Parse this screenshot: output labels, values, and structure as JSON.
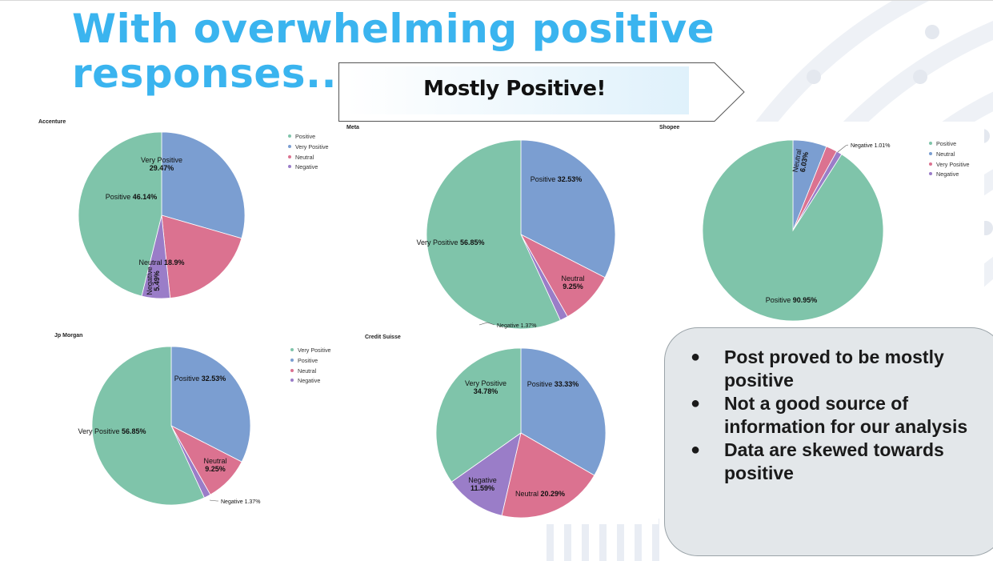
{
  "slide": {
    "title_line1": "With overwhelming positive",
    "title_line2": "responses..",
    "banner": "Mostly Positive!"
  },
  "colors": {
    "title": "#3ab4ef",
    "Positive": "#7fc4aa",
    "Very Positive": "#7b9ed1",
    "Neutral": "#db7290",
    "Negative": "#9a7dc8",
    "Very Positive (Meta/JP)": "#7fc4aa",
    "Positive (Meta/JP)": "#7b9ed1"
  },
  "notes": [
    "Post proved to be mostly positive",
    "Not a good source of information for our analysis",
    "Data are skewed towards positive"
  ],
  "chart_data": [
    {
      "type": "pie",
      "title": "Accenture",
      "legend": [
        "Positive",
        "Very Positive",
        "Neutral",
        "Negative"
      ],
      "legend_colors": [
        "#7fc4aa",
        "#7b9ed1",
        "#db7290",
        "#9a7dc8"
      ],
      "slices": [
        {
          "name": "Very Positive",
          "value": 29.47,
          "pct": "29.47%",
          "color": "#7b9ed1"
        },
        {
          "name": "Neutral",
          "value": 18.9,
          "pct": "18.9%",
          "color": "#db7290"
        },
        {
          "name": "Negative",
          "value": 5.49,
          "pct": "5.49%",
          "color": "#9a7dc8"
        },
        {
          "name": "Positive",
          "value": 46.14,
          "pct": "46.14%",
          "color": "#7fc4aa"
        }
      ]
    },
    {
      "type": "pie",
      "title": "Meta",
      "legend": [],
      "legend_colors": [],
      "slices": [
        {
          "name": "Positive",
          "value": 32.53,
          "pct": "32.53%",
          "color": "#7b9ed1"
        },
        {
          "name": "Neutral",
          "value": 9.25,
          "pct": "9.25%",
          "color": "#db7290"
        },
        {
          "name": "Negative",
          "value": 1.37,
          "pct": "1.37%",
          "color": "#9a7dc8"
        },
        {
          "name": "Very Positive",
          "value": 56.85,
          "pct": "56.85%",
          "color": "#7fc4aa"
        }
      ]
    },
    {
      "type": "pie",
      "title": "Shopee",
      "legend": [
        "Positive",
        "Neutral",
        "Very Positive",
        "Negative"
      ],
      "legend_colors": [
        "#7fc4aa",
        "#7b9ed1",
        "#db7290",
        "#9a7dc8"
      ],
      "slices": [
        {
          "name": "Neutral",
          "value": 6.03,
          "pct": "6.03%",
          "color": "#7b9ed1"
        },
        {
          "name": "Very Positive",
          "value": 2.01,
          "pct": "",
          "color": "#db7290"
        },
        {
          "name": "Negative",
          "value": 1.01,
          "pct": "1.01%",
          "color": "#9a7dc8"
        },
        {
          "name": "Positive",
          "value": 90.95,
          "pct": "90.95%",
          "color": "#7fc4aa"
        }
      ]
    },
    {
      "type": "pie",
      "title": "Jp Morgan",
      "legend": [
        "Very Positive",
        "Positive",
        "Neutral",
        "Negative"
      ],
      "legend_colors": [
        "#7fc4aa",
        "#7b9ed1",
        "#db7290",
        "#9a7dc8"
      ],
      "slices": [
        {
          "name": "Positive",
          "value": 32.53,
          "pct": "32.53%",
          "color": "#7b9ed1"
        },
        {
          "name": "Neutral",
          "value": 9.25,
          "pct": "9.25%",
          "color": "#db7290"
        },
        {
          "name": "Negative",
          "value": 1.37,
          "pct": "1.37%",
          "color": "#9a7dc8"
        },
        {
          "name": "Very Positive",
          "value": 56.85,
          "pct": "56.85%",
          "color": "#7fc4aa"
        }
      ]
    },
    {
      "type": "pie",
      "title": "Credit Suisse",
      "legend": [],
      "legend_colors": [],
      "slices": [
        {
          "name": "Positive",
          "value": 33.33,
          "pct": "33.33%",
          "color": "#7b9ed1"
        },
        {
          "name": "Neutral",
          "value": 20.29,
          "pct": "20.29%",
          "color": "#db7290"
        },
        {
          "name": "Negative",
          "value": 11.59,
          "pct": "11.59%",
          "color": "#9a7dc8"
        },
        {
          "name": "Very Positive",
          "value": 34.78,
          "pct": "34.78%",
          "color": "#7fc4aa"
        }
      ]
    }
  ]
}
